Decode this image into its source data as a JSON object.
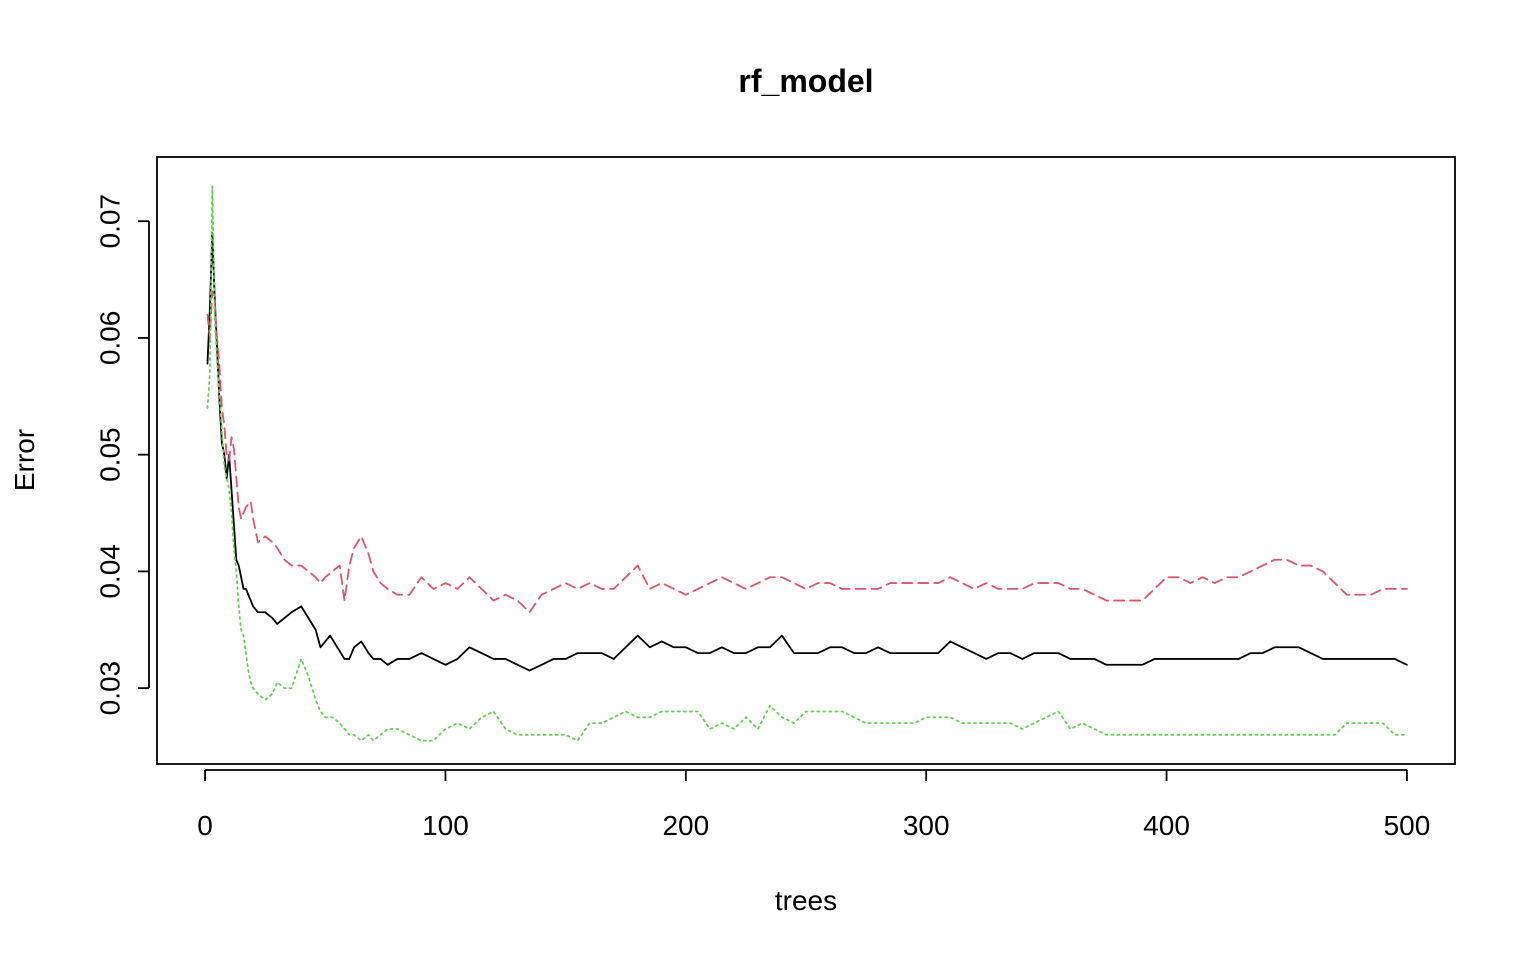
{
  "chart_data": {
    "type": "line",
    "title": "rf_model",
    "xlabel": "trees",
    "ylabel": "Error",
    "xlim": [
      -20,
      520
    ],
    "ylim": [
      0.0235,
      0.0755
    ],
    "xticks": [
      0,
      100,
      200,
      300,
      400,
      500
    ],
    "yticks": [
      0.03,
      0.04,
      0.05,
      0.06,
      0.07
    ],
    "xtick_labels": [
      "0",
      "100",
      "200",
      "300",
      "400",
      "500"
    ],
    "ytick_labels": [
      "0.03",
      "0.04",
      "0.05",
      "0.06",
      "0.07"
    ],
    "grid": false,
    "legend": "none",
    "series": [
      {
        "color": "#000000",
        "line_style": "solid",
        "x": [
          1,
          2,
          3,
          4,
          5,
          6,
          7,
          8,
          9,
          10,
          11,
          12,
          13,
          14,
          15,
          16,
          17,
          18,
          19,
          20,
          22,
          25,
          28,
          30,
          33,
          36,
          40,
          43,
          46,
          48,
          50,
          52,
          55,
          58,
          60,
          62,
          65,
          68,
          70,
          73,
          76,
          80,
          85,
          90,
          95,
          100,
          105,
          110,
          115,
          120,
          125,
          130,
          135,
          140,
          145,
          150,
          155,
          160,
          165,
          170,
          175,
          180,
          185,
          190,
          195,
          200,
          205,
          210,
          215,
          220,
          225,
          230,
          235,
          240,
          245,
          250,
          255,
          260,
          265,
          270,
          275,
          280,
          285,
          290,
          295,
          300,
          305,
          310,
          315,
          320,
          325,
          330,
          335,
          340,
          345,
          350,
          355,
          360,
          365,
          370,
          375,
          380,
          385,
          390,
          395,
          400,
          405,
          410,
          415,
          420,
          425,
          430,
          435,
          440,
          445,
          450,
          455,
          460,
          465,
          470,
          475,
          480,
          485,
          490,
          495,
          500
        ],
        "y": [
          0.0578,
          0.0625,
          0.069,
          0.0635,
          0.059,
          0.0545,
          0.051,
          0.05,
          0.048,
          0.05,
          0.047,
          0.044,
          0.041,
          0.0405,
          0.0395,
          0.0385,
          0.0385,
          0.038,
          0.0375,
          0.037,
          0.0365,
          0.0365,
          0.036,
          0.0355,
          0.036,
          0.0365,
          0.037,
          0.036,
          0.035,
          0.0335,
          0.034,
          0.0345,
          0.0335,
          0.0325,
          0.0325,
          0.0335,
          0.034,
          0.033,
          0.0325,
          0.0325,
          0.032,
          0.0325,
          0.0325,
          0.033,
          0.0325,
          0.032,
          0.0325,
          0.0335,
          0.033,
          0.0325,
          0.0325,
          0.032,
          0.0315,
          0.032,
          0.0325,
          0.0325,
          0.033,
          0.033,
          0.033,
          0.0325,
          0.0335,
          0.0345,
          0.0335,
          0.034,
          0.0335,
          0.0335,
          0.033,
          0.033,
          0.0335,
          0.033,
          0.033,
          0.0335,
          0.0335,
          0.0345,
          0.033,
          0.033,
          0.033,
          0.0335,
          0.0335,
          0.033,
          0.033,
          0.0335,
          0.033,
          0.033,
          0.033,
          0.033,
          0.033,
          0.034,
          0.0335,
          0.033,
          0.0325,
          0.033,
          0.033,
          0.0325,
          0.033,
          0.033,
          0.033,
          0.0325,
          0.0325,
          0.0325,
          0.032,
          0.032,
          0.032,
          0.032,
          0.0325,
          0.0325,
          0.0325,
          0.0325,
          0.0325,
          0.0325,
          0.0325,
          0.0325,
          0.033,
          0.033,
          0.0335,
          0.0335,
          0.0335,
          0.033,
          0.0325,
          0.0325,
          0.0325,
          0.0325,
          0.0325,
          0.0325,
          0.0325,
          0.032
        ]
      },
      {
        "color": "#DF536B",
        "line_style": "dashed",
        "x": [
          1,
          2,
          3,
          4,
          5,
          6,
          7,
          8,
          9,
          10,
          11,
          12,
          13,
          14,
          15,
          17,
          19,
          20,
          22,
          25,
          28,
          30,
          33,
          36,
          40,
          43,
          46,
          48,
          50,
          53,
          56,
          58,
          60,
          62,
          65,
          68,
          70,
          73,
          76,
          80,
          85,
          90,
          95,
          100,
          105,
          110,
          115,
          120,
          125,
          130,
          135,
          140,
          145,
          150,
          155,
          160,
          165,
          170,
          175,
          180,
          185,
          190,
          195,
          200,
          205,
          210,
          215,
          220,
          225,
          230,
          235,
          240,
          245,
          250,
          255,
          260,
          265,
          270,
          275,
          280,
          285,
          290,
          295,
          300,
          305,
          310,
          315,
          320,
          325,
          330,
          335,
          340,
          345,
          350,
          355,
          360,
          365,
          370,
          375,
          380,
          385,
          390,
          395,
          400,
          405,
          410,
          415,
          420,
          425,
          430,
          435,
          440,
          445,
          450,
          455,
          460,
          465,
          470,
          475,
          480,
          485,
          490,
          495,
          500
        ],
        "y": [
          0.062,
          0.06,
          0.064,
          0.063,
          0.06,
          0.0575,
          0.054,
          0.0525,
          0.05,
          0.0495,
          0.0515,
          0.0505,
          0.048,
          0.0455,
          0.0445,
          0.0455,
          0.046,
          0.0445,
          0.0425,
          0.043,
          0.0425,
          0.042,
          0.041,
          0.0405,
          0.0405,
          0.04,
          0.0395,
          0.039,
          0.0395,
          0.04,
          0.0405,
          0.0375,
          0.0405,
          0.042,
          0.043,
          0.0415,
          0.04,
          0.039,
          0.0385,
          0.038,
          0.038,
          0.0395,
          0.0385,
          0.039,
          0.0385,
          0.0395,
          0.0385,
          0.0375,
          0.038,
          0.0375,
          0.0365,
          0.038,
          0.0385,
          0.039,
          0.0385,
          0.039,
          0.0385,
          0.0385,
          0.0395,
          0.0405,
          0.0385,
          0.039,
          0.0385,
          0.038,
          0.0385,
          0.039,
          0.0395,
          0.039,
          0.0385,
          0.039,
          0.0395,
          0.0395,
          0.039,
          0.0385,
          0.039,
          0.039,
          0.0385,
          0.0385,
          0.0385,
          0.0385,
          0.039,
          0.039,
          0.039,
          0.039,
          0.039,
          0.0395,
          0.039,
          0.0385,
          0.039,
          0.0385,
          0.0385,
          0.0385,
          0.039,
          0.039,
          0.039,
          0.0385,
          0.0385,
          0.038,
          0.0375,
          0.0375,
          0.0375,
          0.0375,
          0.0385,
          0.0395,
          0.0395,
          0.039,
          0.0395,
          0.039,
          0.0395,
          0.0395,
          0.04,
          0.0405,
          0.041,
          0.041,
          0.0405,
          0.0405,
          0.04,
          0.039,
          0.038,
          0.038,
          0.038,
          0.0385,
          0.0385,
          0.0385
        ]
      },
      {
        "color": "#61D04F",
        "line_style": "dotted",
        "x": [
          1,
          2,
          3,
          4,
          5,
          6,
          7,
          8,
          9,
          10,
          11,
          12,
          13,
          14,
          15,
          16,
          17,
          18,
          19,
          20,
          22,
          25,
          28,
          30,
          33,
          36,
          40,
          43,
          46,
          48,
          50,
          53,
          56,
          58,
          60,
          62,
          65,
          68,
          70,
          73,
          76,
          80,
          85,
          90,
          95,
          100,
          105,
          110,
          115,
          120,
          125,
          130,
          135,
          140,
          145,
          150,
          155,
          160,
          165,
          170,
          175,
          180,
          185,
          190,
          195,
          200,
          205,
          210,
          215,
          220,
          225,
          230,
          235,
          240,
          245,
          250,
          255,
          260,
          265,
          270,
          275,
          280,
          285,
          290,
          295,
          300,
          305,
          310,
          315,
          320,
          325,
          330,
          335,
          340,
          345,
          350,
          355,
          360,
          365,
          370,
          375,
          380,
          385,
          390,
          395,
          400,
          405,
          410,
          415,
          420,
          425,
          430,
          435,
          440,
          445,
          450,
          455,
          460,
          465,
          470,
          475,
          480,
          485,
          490,
          495,
          500
        ],
        "y": [
          0.054,
          0.057,
          0.073,
          0.062,
          0.058,
          0.055,
          0.052,
          0.049,
          0.048,
          0.047,
          0.045,
          0.042,
          0.04,
          0.037,
          0.035,
          0.0345,
          0.033,
          0.0315,
          0.0305,
          0.03,
          0.0295,
          0.029,
          0.0295,
          0.0305,
          0.03,
          0.03,
          0.0325,
          0.031,
          0.029,
          0.028,
          0.0275,
          0.0275,
          0.027,
          0.0265,
          0.026,
          0.026,
          0.0255,
          0.026,
          0.0255,
          0.026,
          0.0265,
          0.0265,
          0.026,
          0.0255,
          0.0255,
          0.0265,
          0.027,
          0.0265,
          0.0275,
          0.028,
          0.0265,
          0.026,
          0.026,
          0.026,
          0.026,
          0.026,
          0.0255,
          0.027,
          0.027,
          0.0275,
          0.028,
          0.0275,
          0.0275,
          0.028,
          0.028,
          0.028,
          0.028,
          0.0265,
          0.027,
          0.0265,
          0.0275,
          0.0265,
          0.0285,
          0.0275,
          0.027,
          0.028,
          0.028,
          0.028,
          0.028,
          0.0275,
          0.027,
          0.027,
          0.027,
          0.027,
          0.027,
          0.0275,
          0.0275,
          0.0275,
          0.027,
          0.027,
          0.027,
          0.027,
          0.027,
          0.0265,
          0.027,
          0.0275,
          0.028,
          0.0265,
          0.027,
          0.0265,
          0.026,
          0.026,
          0.026,
          0.026,
          0.026,
          0.026,
          0.026,
          0.026,
          0.026,
          0.026,
          0.026,
          0.026,
          0.026,
          0.026,
          0.026,
          0.026,
          0.026,
          0.026,
          0.026,
          0.026,
          0.027,
          0.027,
          0.027,
          0.027,
          0.026,
          0.026
        ]
      }
    ]
  }
}
